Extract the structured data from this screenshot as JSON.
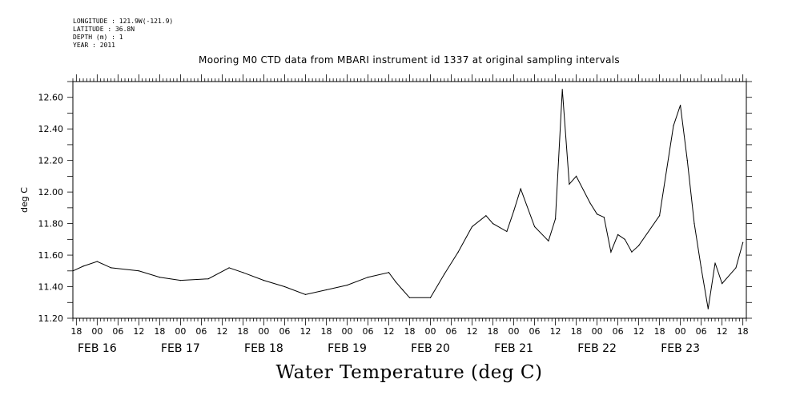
{
  "meta": {
    "longitude": "LONGITUDE : 121.9W(-121.9)",
    "latitude": "LATITUDE : 36.8N",
    "depth": "DEPTH (m) : 1",
    "year": "YEAR : 2011"
  },
  "chart_data": {
    "type": "line",
    "title": "Mooring M0 CTD data from MBARI instrument id 1337 at original sampling intervals",
    "subtitle": "Water Temperature (deg C)",
    "ylabel": "deg C",
    "xlabel": "",
    "ylim": [
      11.2,
      12.7
    ],
    "y_ticks": [
      "11.20",
      "11.40",
      "11.60",
      "11.80",
      "12.00",
      "12.20",
      "12.40",
      "12.60"
    ],
    "x_range_hours": [
      "FEB 15 17:00",
      "FEB 23 19:00"
    ],
    "x_hour_ticks": [
      "18",
      "00",
      "06",
      "12",
      "18",
      "00",
      "06",
      "12",
      "18",
      "00",
      "06",
      "12",
      "18",
      "00",
      "06",
      "12",
      "18",
      "00",
      "06",
      "12",
      "18",
      "00",
      "06",
      "12",
      "18",
      "00",
      "06",
      "12",
      "18",
      "00",
      "06",
      "12",
      "18"
    ],
    "x_date_labels": [
      "FEB 16",
      "FEB 17",
      "FEB 18",
      "FEB 19",
      "FEB 20",
      "FEB 21",
      "FEB 22",
      "FEB 23"
    ],
    "grid": false,
    "series": [
      {
        "x": [
          "FEB 15 17:00",
          "FEB 15 20:00",
          "FEB 16 00:00",
          "FEB 16 04:00",
          "FEB 16 12:00",
          "FEB 16 18:00",
          "FEB 17 00:00",
          "FEB 17 08:00",
          "FEB 17 14:00",
          "FEB 17 18:00",
          "FEB 18 00:00",
          "FEB 18 06:00",
          "FEB 18 12:00",
          "FEB 18 18:00",
          "FEB 19 00:00",
          "FEB 19 06:00",
          "FEB 19 12:00",
          "FEB 19 14:00",
          "FEB 19 16:00",
          "FEB 19 18:00",
          "FEB 20 00:00",
          "FEB 20 04:00",
          "FEB 20 08:00",
          "FEB 20 12:00",
          "FEB 20 16:00",
          "FEB 20 18:00",
          "FEB 20 22:00",
          "FEB 21 00:00",
          "FEB 21 02:00",
          "FEB 21 06:00",
          "FEB 21 10:00",
          "FEB 21 12:00",
          "FEB 21 14:00",
          "FEB 21 16:00",
          "FEB 21 18:00",
          "FEB 21 22:00",
          "FEB 22 00:00",
          "FEB 22 02:00",
          "FEB 22 04:00",
          "FEB 22 06:00",
          "FEB 22 08:00",
          "FEB 22 10:00",
          "FEB 22 12:00",
          "FEB 22 18:00",
          "FEB 22 22:00",
          "FEB 23 00:00",
          "FEB 23 02:00",
          "FEB 23 04:00",
          "FEB 23 06:00",
          "FEB 23 08:00",
          "FEB 23 10:00",
          "FEB 23 12:00",
          "FEB 23 16:00",
          "FEB 23 18:00"
        ],
        "values": [
          11.5,
          11.53,
          11.56,
          11.52,
          11.5,
          11.46,
          11.44,
          11.45,
          11.52,
          11.49,
          11.44,
          11.4,
          11.35,
          11.38,
          11.41,
          11.46,
          11.49,
          11.43,
          11.38,
          11.33,
          11.33,
          11.48,
          11.62,
          11.78,
          11.85,
          11.8,
          11.75,
          11.88,
          12.02,
          11.78,
          11.69,
          11.83,
          12.65,
          12.05,
          12.1,
          11.93,
          11.86,
          11.84,
          11.62,
          11.73,
          11.7,
          11.62,
          11.66,
          11.85,
          12.42,
          12.55,
          12.2,
          11.8,
          11.52,
          11.26,
          11.55,
          11.42,
          11.52,
          11.68
        ]
      }
    ]
  }
}
